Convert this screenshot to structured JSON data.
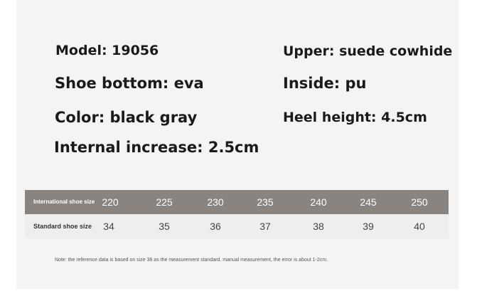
{
  "specs": {
    "left": [
      "Model: 19056",
      "Shoe bottom: eva",
      "Color: black gray",
      "Internal increase: 2.5cm"
    ],
    "right": [
      "Upper: suede cowhide",
      "Inside: pu",
      "Heel height: 4.5cm"
    ]
  },
  "size_table": {
    "rows": [
      {
        "label": "International shoe size",
        "values": [
          "220",
          "225",
          "230",
          "235",
          "240",
          "245",
          "250"
        ]
      },
      {
        "label": "Standard shoe size",
        "values": [
          "34",
          "35",
          "36",
          "37",
          "38",
          "39",
          "40"
        ]
      }
    ]
  },
  "note": "Note: the reference data is based on size 36 as the measurement standard. manual measurement, the error is about 1-2cm.",
  "colors": {
    "header_row": "#8a8480",
    "panel": "#f4f4f4"
  }
}
